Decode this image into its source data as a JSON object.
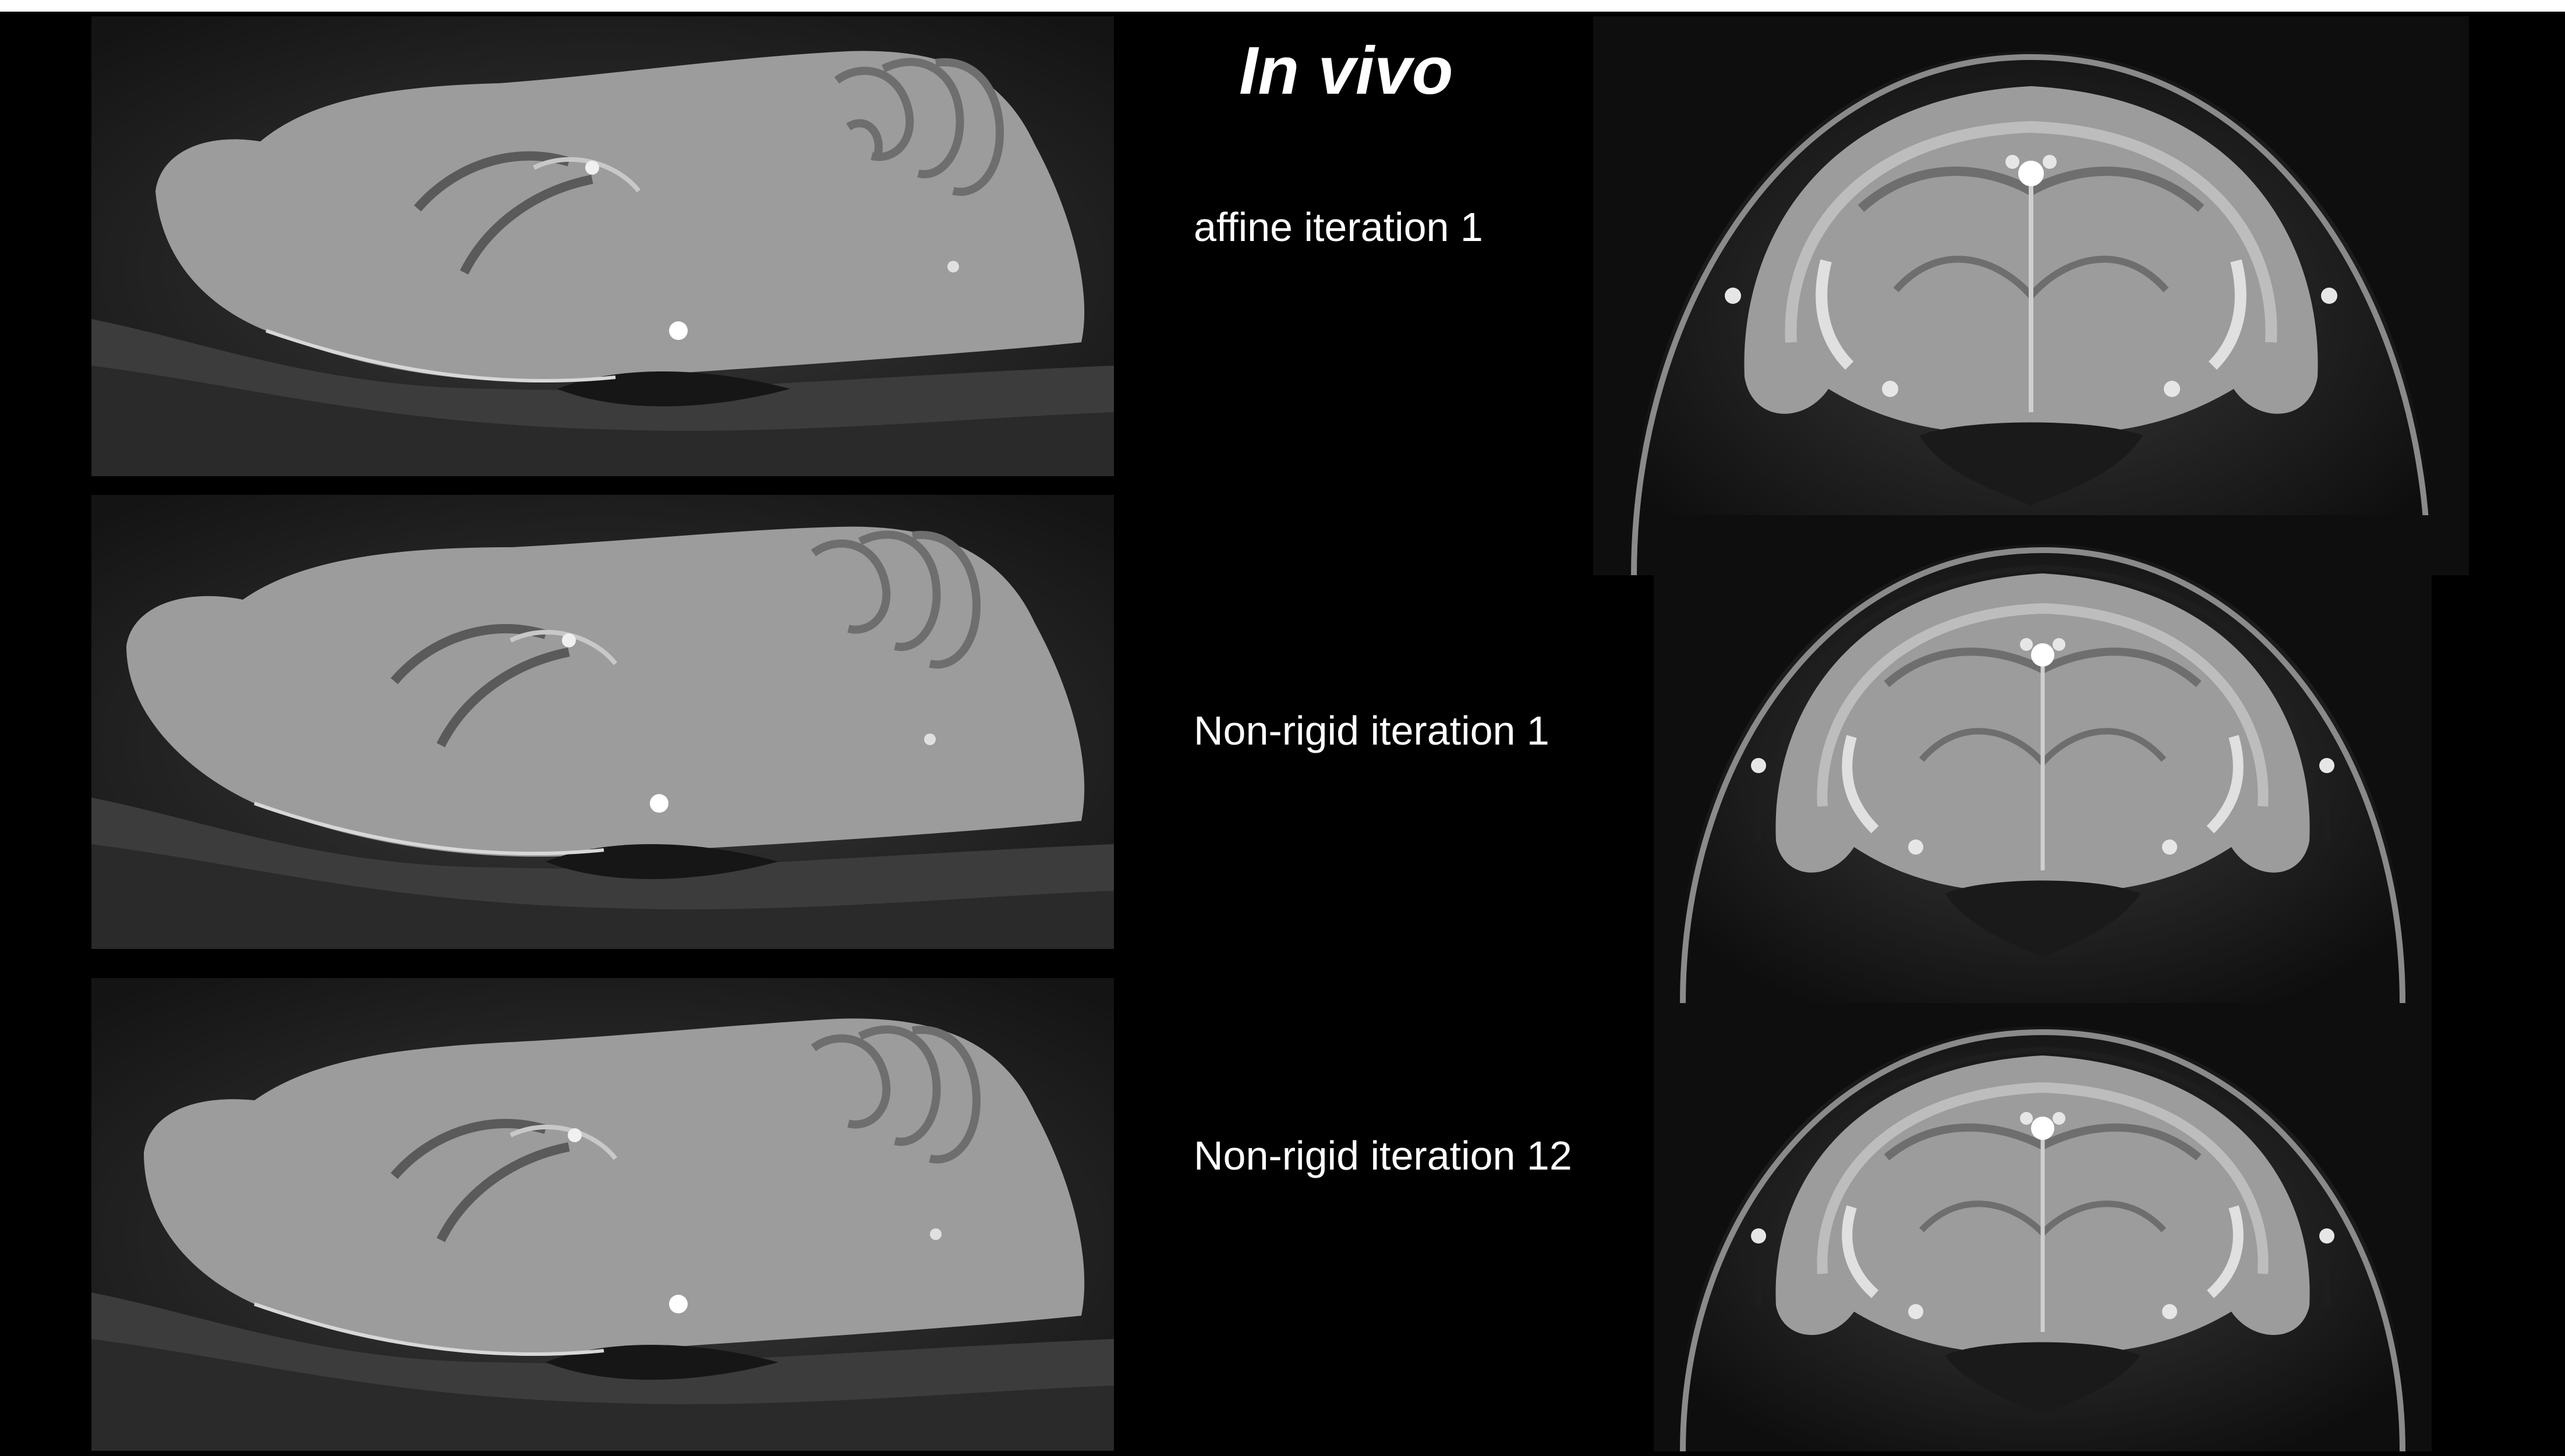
{
  "title": "In vivo",
  "rows": [
    {
      "label": "affine iteration 1"
    },
    {
      "label": "Non-rigid iteration 1"
    },
    {
      "label": "Non-rigid iteration 12"
    }
  ],
  "colors": {
    "background": "#000000",
    "text": "#ffffff",
    "tissue": "#9a9a9a",
    "tissue_dark": "#4a4a4a",
    "bright_spot": "#ffffff"
  },
  "panels": {
    "sagittal": [
      "sagittal-slice-affine-1",
      "sagittal-slice-nonrigid-1",
      "sagittal-slice-nonrigid-12"
    ],
    "coronal": [
      "coronal-slice-affine-1",
      "coronal-slice-nonrigid-1",
      "coronal-slice-nonrigid-12"
    ]
  }
}
